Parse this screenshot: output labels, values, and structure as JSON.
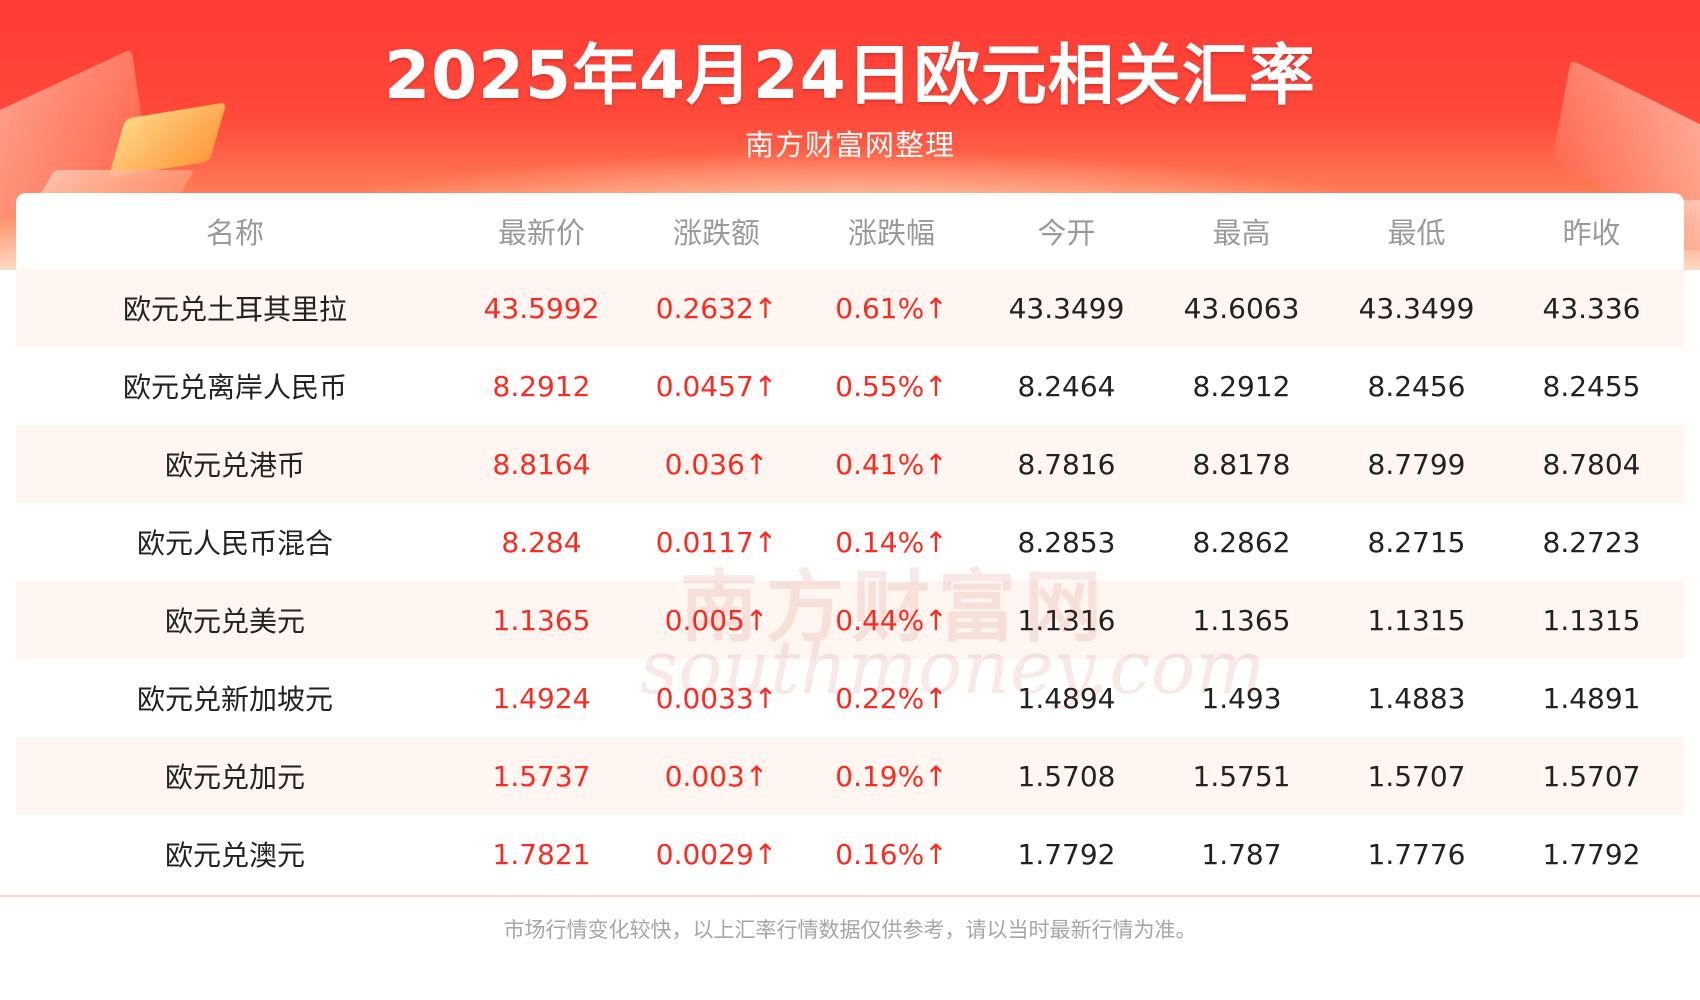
{
  "banner": {
    "title": "2025年4月24日欧元相关汇率",
    "subtitle": "南方财富网整理"
  },
  "table": {
    "headers": [
      "名称",
      "最新价",
      "涨跌额",
      "涨跌幅",
      "今开",
      "最高",
      "最低",
      "昨收"
    ],
    "rows": [
      [
        "欧元兑土耳其里拉",
        "43.5992",
        "0.2632↑",
        "0.61%↑",
        "43.3499",
        "43.6063",
        "43.3499",
        "43.336"
      ],
      [
        "欧元兑离岸人民币",
        "8.2912",
        "0.0457↑",
        "0.55%↑",
        "8.2464",
        "8.2912",
        "8.2456",
        "8.2455"
      ],
      [
        "欧元兑港币",
        "8.8164",
        "0.036↑",
        "0.41%↑",
        "8.7816",
        "8.8178",
        "8.7799",
        "8.7804"
      ],
      [
        "欧元人民币混合",
        "8.284",
        "0.0117↑",
        "0.14%↑",
        "8.2853",
        "8.2862",
        "8.2715",
        "8.2723"
      ],
      [
        "欧元兑美元",
        "1.1365",
        "0.005↑",
        "0.44%↑",
        "1.1316",
        "1.1365",
        "1.1315",
        "1.1315"
      ],
      [
        "欧元兑新加坡元",
        "1.4924",
        "0.0033↑",
        "0.22%↑",
        "1.4894",
        "1.493",
        "1.4883",
        "1.4891"
      ],
      [
        "欧元兑加元",
        "1.5737",
        "0.003↑",
        "0.19%↑",
        "1.5708",
        "1.5751",
        "1.5707",
        "1.5707"
      ],
      [
        "欧元兑澳元",
        "1.7821",
        "0.0029↑",
        "0.16%↑",
        "1.7792",
        "1.787",
        "1.7776",
        "1.7792"
      ]
    ]
  },
  "watermark": {
    "cn": "南方财富网",
    "en": "southmoney.com"
  },
  "footer": {
    "note": "市场行情变化较快，以上汇率行情数据仅供参考，请以当时最新行情为准。"
  },
  "colors": {
    "up": "#ff2a1f",
    "banner": "#ff3b35",
    "row_alt": "#fff5f1"
  }
}
